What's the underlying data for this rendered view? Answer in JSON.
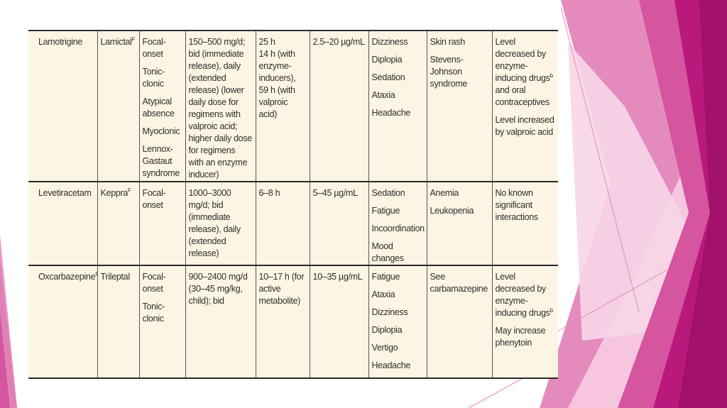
{
  "rows": [
    {
      "drug": "Lamotrigine",
      "brand": "Lamictal",
      "brand_sup": "F",
      "seizure_types": [
        "Focal-onset",
        "Tonic-clonic",
        "Atypical absence",
        "Myoclonic",
        "Lennox-Gastaut syndrome"
      ],
      "dosage": "150–500 mg/d; bid (immediate release), daily (extended release) (lower daily dose for regimens with valproic acid; higher daily dose for regimens with an enzyme inducer)",
      "half_life": [
        "25 h",
        "14 h (with enzyme-inducers),",
        "59 h (with valproic acid)"
      ],
      "level": "2.5–20 µg/mL",
      "common_effects": [
        "Dizziness",
        "Diplopia",
        "Sedation",
        "Ataxia",
        "Headache"
      ],
      "serious_effects": [
        "Skin rash",
        "Stevens-Johnson syndrome"
      ],
      "interactions": [
        "Level decreased by enzyme-inducing drugs",
        "and oral contraceptives",
        "Level increased by valproic acid"
      ],
      "interactions_sup": "b"
    },
    {
      "drug": "Levetiracetam",
      "brand": "Keppra",
      "brand_sup": "F",
      "seizure_types": [
        "Focal-onset"
      ],
      "dosage": "1000–3000 mg/d; bid (immediate release), daily (extended release)",
      "half_life": [
        "6–8 h"
      ],
      "level": "5–45 µg/mL",
      "common_effects": [
        "Sedation",
        "Fatigue",
        "Incoordination",
        "Mood changes"
      ],
      "serious_effects": [
        "Anemia",
        "Leukopenia"
      ],
      "interactions": [
        "No known significant interactions"
      ]
    },
    {
      "drug": "Oxcarbazepine",
      "drug_sup": "F",
      "brand": "Trileptal",
      "seizure_types": [
        "Focal-onset",
        "Tonic-clonic"
      ],
      "dosage": "900–2400 mg/d (30–45 mg/kg, child); bid",
      "half_life": [
        "10–17 h (for active metabolite)"
      ],
      "level": "10–35 µg/mL",
      "common_effects": [
        "Fatigue",
        "Ataxia",
        "Dizziness",
        "Diplopia",
        "Vertigo",
        "Headache"
      ],
      "serious_effects": [
        "See carbamazepine"
      ],
      "interactions": [
        "Level decreased by enzyme-inducing drugs",
        "May increase phenytoin"
      ],
      "interactions_sup": "b"
    }
  ],
  "colors": {
    "table_bg": "#fcf5e3",
    "magenta_dark": "#b8197a",
    "magenta_mid": "#d5559e",
    "pink_light": "#ee9fcb"
  }
}
